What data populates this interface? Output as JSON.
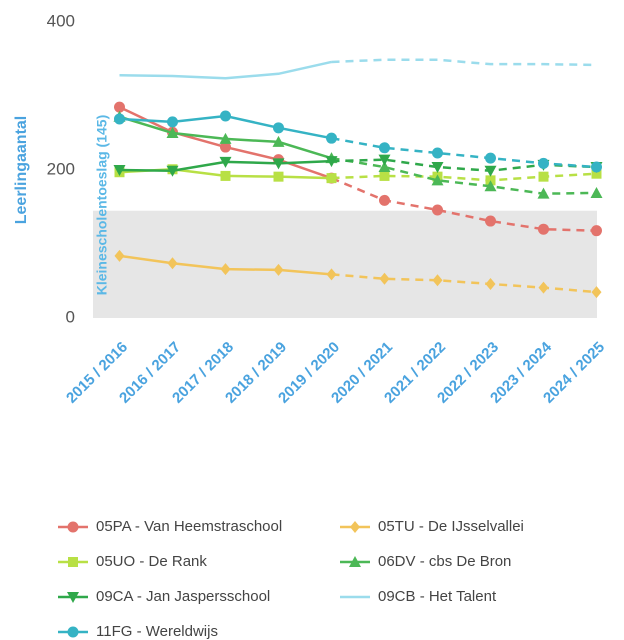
{
  "chart_data": {
    "type": "line",
    "y_label": "Leerlingaantal",
    "categories": [
      "2015 / 2016",
      "2016 / 2017",
      "2017 / 2018",
      "2018 / 2019",
      "2019 / 2020",
      "2020 / 2021",
      "2021 / 2022",
      "2022 / 2023",
      "2023 / 2024",
      "2024 / 2025"
    ],
    "dashed_from": "2019 / 2020",
    "ylim": [
      0,
      400
    ],
    "yticks": [
      0,
      200,
      400
    ],
    "threshold": {
      "value": 145,
      "label": "Kleinescholentoeslag (145)",
      "color": "#e6e6e6",
      "label_color": "#5bb8e6"
    },
    "series": [
      {
        "name": "05PA - Van Heemstraschool",
        "color": "#e3736c",
        "marker": "circle",
        "values": [
          285,
          251,
          231,
          214,
          189,
          159,
          146,
          131,
          120,
          118
        ]
      },
      {
        "name": "05TU - De IJsselvallei",
        "color": "#f2c45a",
        "marker": "diamond",
        "values": [
          84,
          74,
          66,
          65,
          59,
          53,
          51,
          46,
          41,
          35
        ]
      },
      {
        "name": "05UO - De Rank",
        "color": "#b8e045",
        "marker": "square",
        "values": [
          197,
          201,
          192,
          191,
          189,
          192,
          191,
          186,
          191,
          195
        ]
      },
      {
        "name": "06DV - cbs De Bron",
        "color": "#4cb856",
        "marker": "triangle-up",
        "values": [
          272,
          250,
          242,
          238,
          216,
          204,
          186,
          178,
          168,
          169
        ]
      },
      {
        "name": "09CA - Jan Jaspersschool",
        "color": "#2fa84a",
        "marker": "triangle-down",
        "values": [
          200,
          199,
          211,
          209,
          212,
          214,
          204,
          199,
          207,
          204
        ]
      },
      {
        "name": "09CB - Het Talent",
        "color": "#9bdcec",
        "marker": "none",
        "values": [
          328,
          327,
          324,
          330,
          346,
          349,
          349,
          343,
          343,
          342
        ]
      },
      {
        "name": "11FG - Wereldwijs",
        "color": "#35b3c4",
        "marker": "circle",
        "values": [
          269,
          265,
          273,
          257,
          243,
          230,
          223,
          216,
          209,
          204
        ]
      }
    ]
  }
}
